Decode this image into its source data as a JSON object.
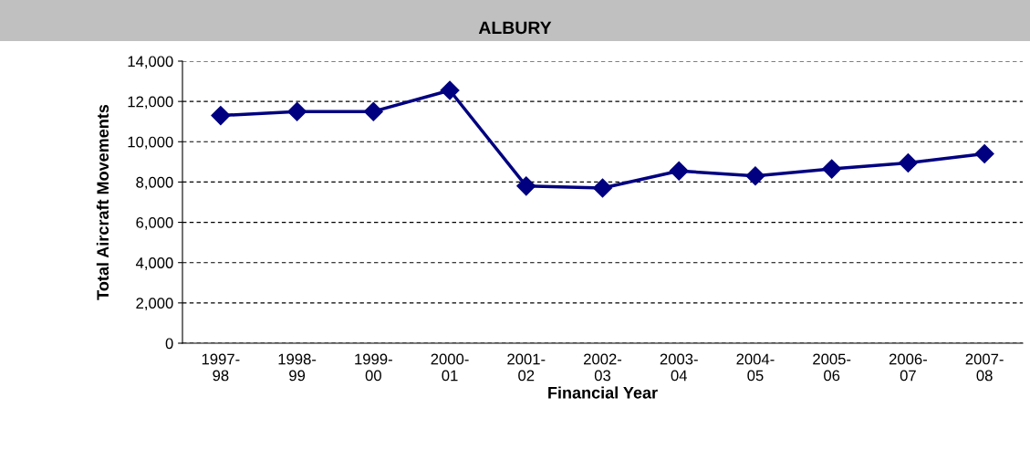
{
  "chart_data": {
    "type": "line",
    "title": "ALBURY",
    "xlabel": "Financial Year",
    "ylabel": "Total Aircraft Movements",
    "categories": [
      "1997-\n98",
      "1998-\n99",
      "1999-\n00",
      "2000-\n01",
      "2001-\n02",
      "2002-\n03",
      "2003-\n04",
      "2004-\n05",
      "2005-\n06",
      "2006-\n07",
      "2007-\n08"
    ],
    "series": [
      {
        "color": "#000080",
        "values": [
          11300,
          11500,
          11500,
          12550,
          7800,
          7700,
          8550,
          8300,
          8650,
          8950,
          9400
        ]
      }
    ],
    "ylim": [
      0,
      14000
    ],
    "yticks": [
      {
        "value": 0,
        "label": "0"
      },
      {
        "value": 2000,
        "label": "2,000"
      },
      {
        "value": 4000,
        "label": "4,000"
      },
      {
        "value": 6000,
        "label": "6,000"
      },
      {
        "value": 8000,
        "label": "8,000"
      },
      {
        "value": 10000,
        "label": "10,000"
      },
      {
        "value": 12000,
        "label": "12,000"
      },
      {
        "value": 14000,
        "label": "14,000"
      }
    ],
    "grid": "y",
    "marker": "diamond",
    "line_style": "solid",
    "legend": false
  }
}
